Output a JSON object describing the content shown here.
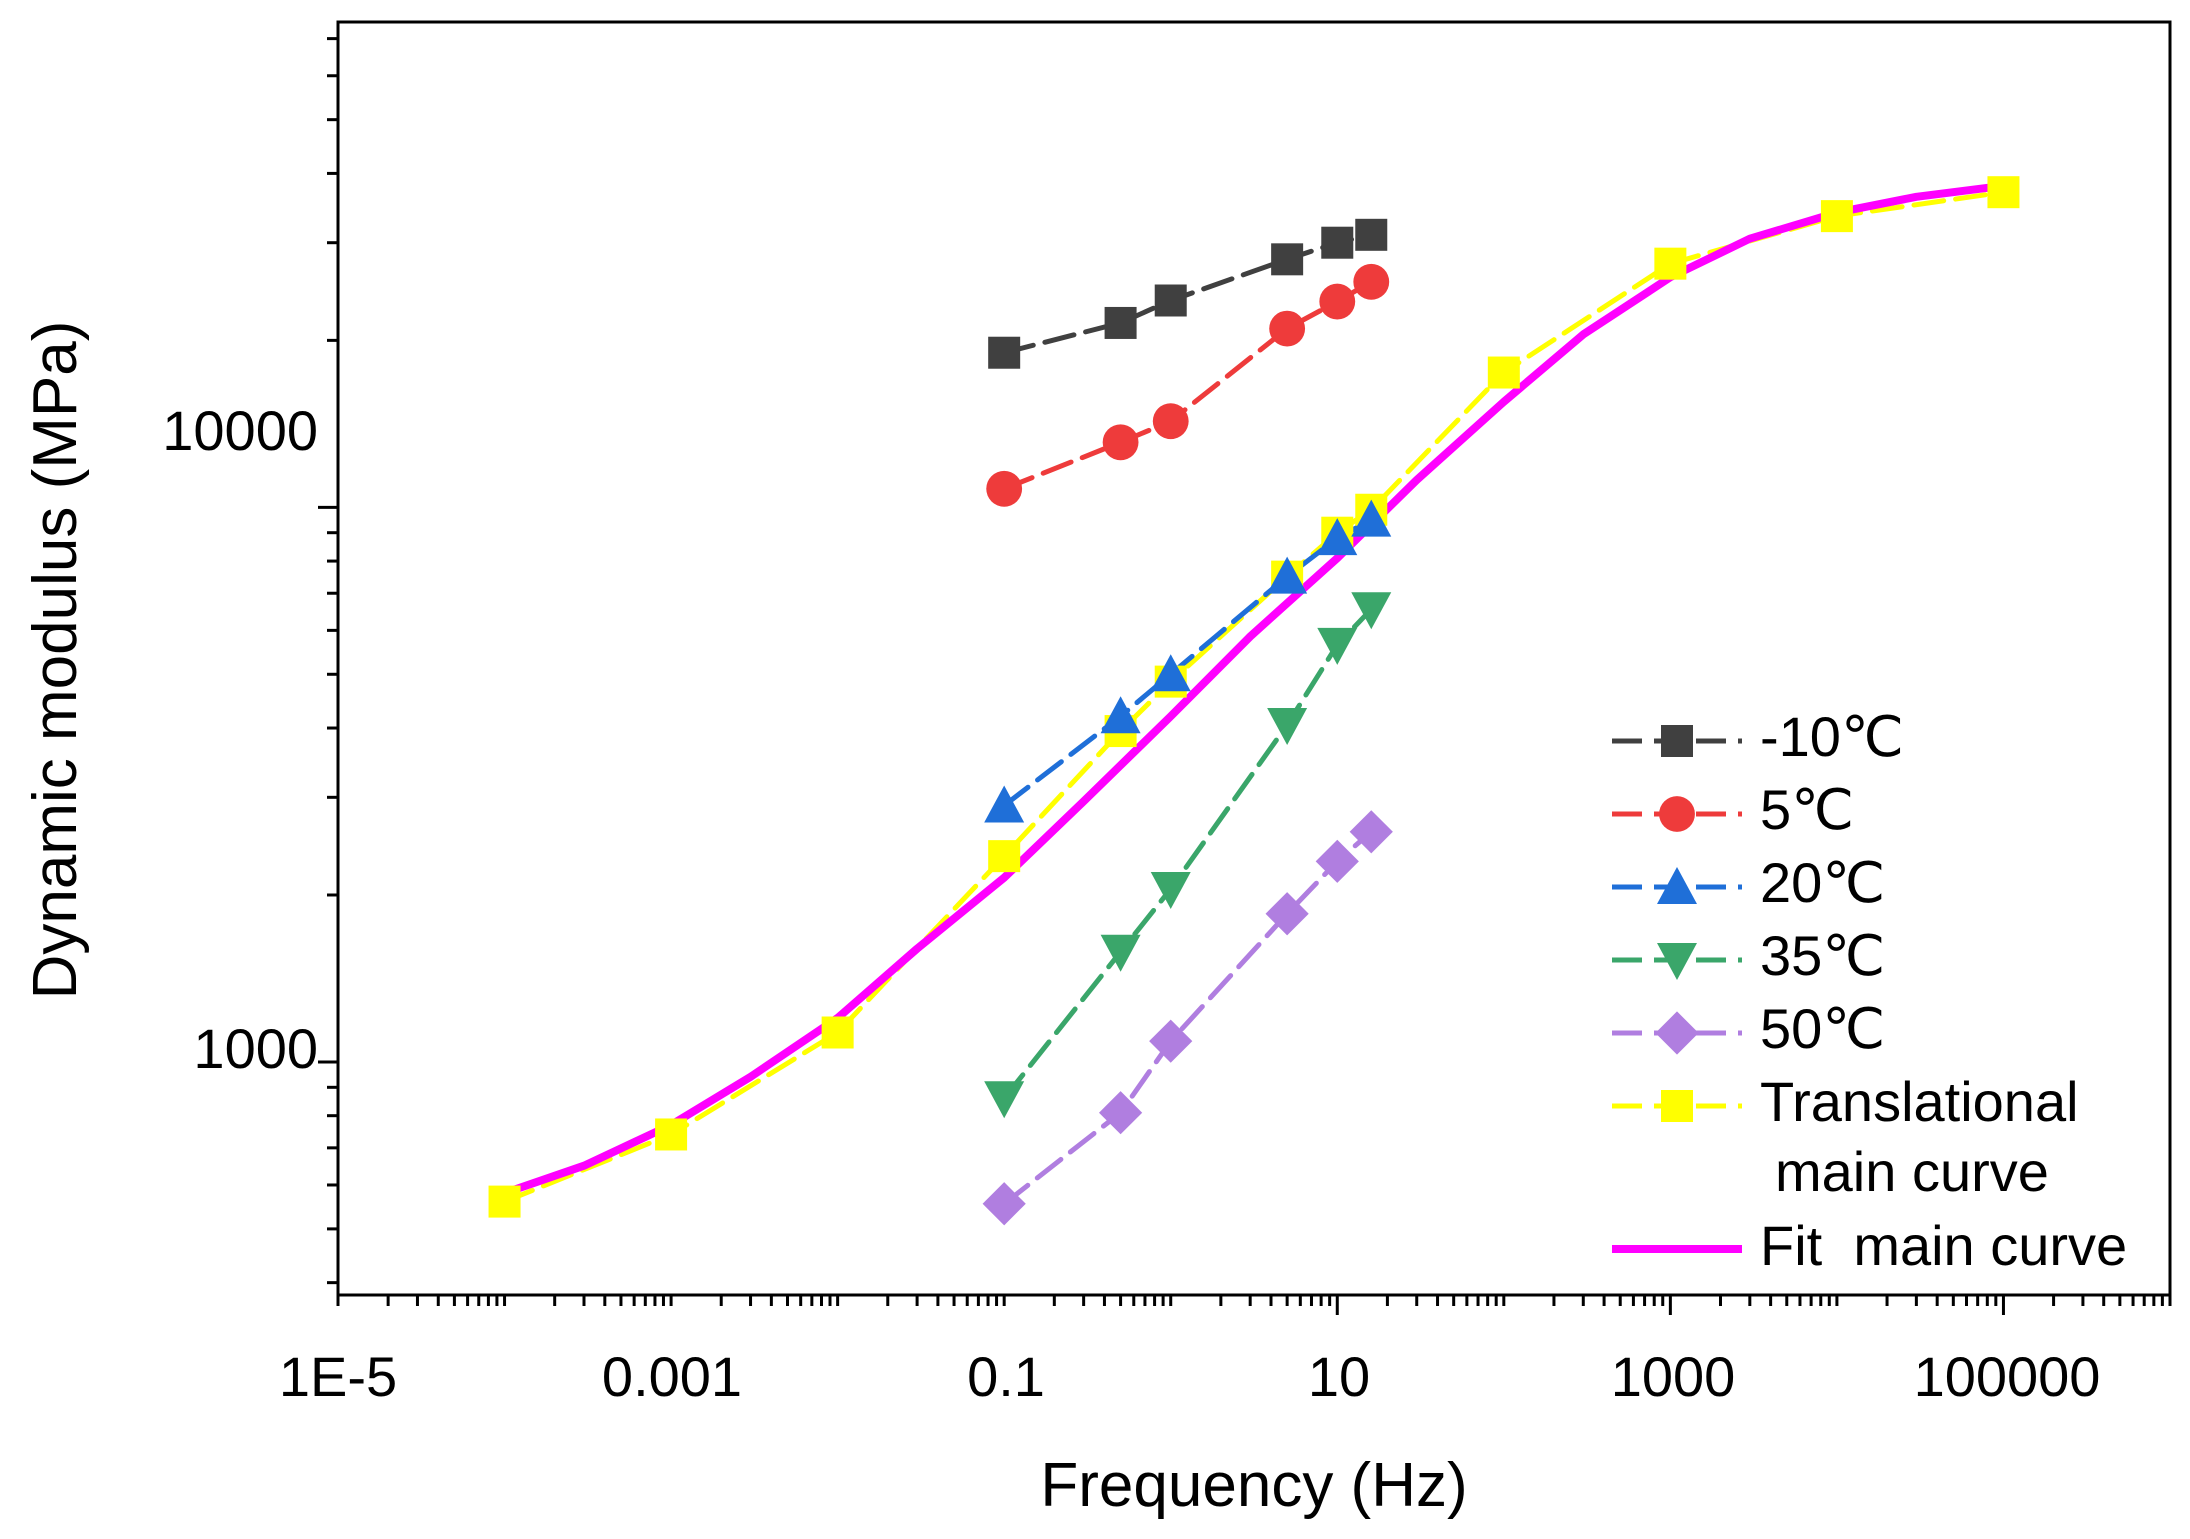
{
  "chart_data": {
    "type": "line",
    "title": "",
    "xlabel": "Frequency (Hz)",
    "ylabel": "Dynamic modulus (MPa)",
    "xscale": "log",
    "yscale": "log",
    "xlim": [
      1e-05,
      1000000
    ],
    "ylim": [
      380,
      75000
    ],
    "grid": false,
    "legend_position": "bottom-right",
    "x_tick_labels": [
      "1E-5",
      "0.001",
      "0.1",
      "10",
      "1000",
      "100000"
    ],
    "y_tick_labels": [
      "1000",
      "10000"
    ],
    "series": [
      {
        "name": "-10℃",
        "color": "#404040",
        "marker": "square",
        "line": "dash",
        "x": [
          0.1,
          0.5,
          1,
          5,
          10,
          16
        ],
        "y": [
          19000,
          21500,
          23600,
          28000,
          30000,
          31000
        ]
      },
      {
        "name": "5℃",
        "color": "#ee3b3b",
        "marker": "circle",
        "line": "dash",
        "x": [
          0.1,
          0.5,
          1,
          5,
          10,
          16
        ],
        "y": [
          10800,
          13100,
          14300,
          21000,
          23500,
          25500
        ]
      },
      {
        "name": "20℃",
        "color": "#1f6fd8",
        "marker": "triangle-up",
        "line": "dash",
        "x": [
          0.1,
          0.5,
          1,
          5,
          10,
          16
        ],
        "y": [
          2900,
          4200,
          5000,
          7500,
          8800,
          9500
        ]
      },
      {
        "name": "35℃",
        "color": "#3aa66a",
        "marker": "triangle-down",
        "line": "dash",
        "x": [
          0.1,
          0.5,
          1,
          5,
          10,
          16
        ],
        "y": [
          860,
          1580,
          2050,
          4050,
          5650,
          6550
        ]
      },
      {
        "name": "50℃",
        "color": "#b07ee0",
        "marker": "diamond",
        "line": "dash",
        "x": [
          0.1,
          0.5,
          1,
          5,
          10,
          16
        ],
        "y": [
          555,
          810,
          1090,
          1850,
          2300,
          2600
        ]
      },
      {
        "name": "Translational\nmain curve",
        "color": "#ffff00",
        "marker": "square",
        "line": "dash",
        "x": [
          0.0001,
          0.001,
          0.01,
          0.1,
          0.5,
          1,
          5,
          10,
          16,
          100,
          1000,
          10000,
          100000
        ],
        "y": [
          560,
          740,
          1130,
          2350,
          3950,
          4850,
          7500,
          9000,
          9900,
          17500,
          27500,
          33500,
          37000
        ]
      },
      {
        "name": "Fit  main curve",
        "color": "#ff00ff",
        "marker": "none",
        "line": "solid",
        "x": [
          0.0001,
          0.0003,
          0.001,
          0.003,
          0.01,
          0.03,
          0.1,
          0.3,
          1,
          3,
          10,
          30,
          100,
          300,
          1000,
          3000,
          10000,
          30000,
          100000
        ],
        "y": [
          580,
          650,
          770,
          940,
          1200,
          1600,
          2150,
          2950,
          4200,
          5850,
          8100,
          11200,
          15500,
          20500,
          26000,
          30500,
          34000,
          36300,
          38000
        ]
      }
    ]
  }
}
